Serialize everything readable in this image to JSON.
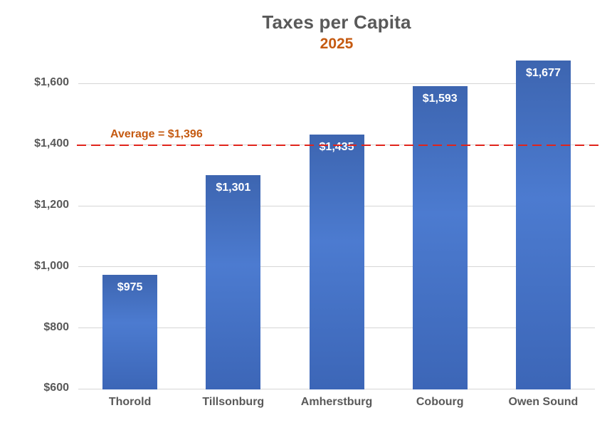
{
  "chart_data": {
    "type": "bar",
    "title": "Taxes per Capita",
    "subtitle": "2025",
    "categories": [
      "Thorold",
      "Tillsonburg",
      "Amherstburg",
      "Cobourg",
      "Owen Sound"
    ],
    "values": [
      975,
      1301,
      1435,
      1593,
      1677
    ],
    "value_labels": [
      "$975",
      "$1,301",
      "$1,435",
      "$1,593",
      "$1,677"
    ],
    "xlabel": "",
    "ylabel": "",
    "ylim": [
      600,
      1700
    ],
    "yticks": [
      600,
      800,
      1000,
      1200,
      1400,
      1600
    ],
    "ytick_labels": [
      "$600",
      "$800",
      "$1,000",
      "$1,200",
      "$1,400",
      "$1,600"
    ],
    "grid": true,
    "legend": "none",
    "average": {
      "value": 1396,
      "label": "Average = $1,396"
    },
    "colors": {
      "title": "#595959",
      "subtitle": "#C55A11",
      "axis_text": "#595959",
      "gridline": "#D6D6D6",
      "bar_top": "#3D65B0",
      "bar_mid": "#4C7BD0",
      "bar_bottom": "#3C66B7",
      "bar_label": "#FFFFFF",
      "average_line": "#E0241B",
      "average_label": "#C55A11"
    }
  }
}
